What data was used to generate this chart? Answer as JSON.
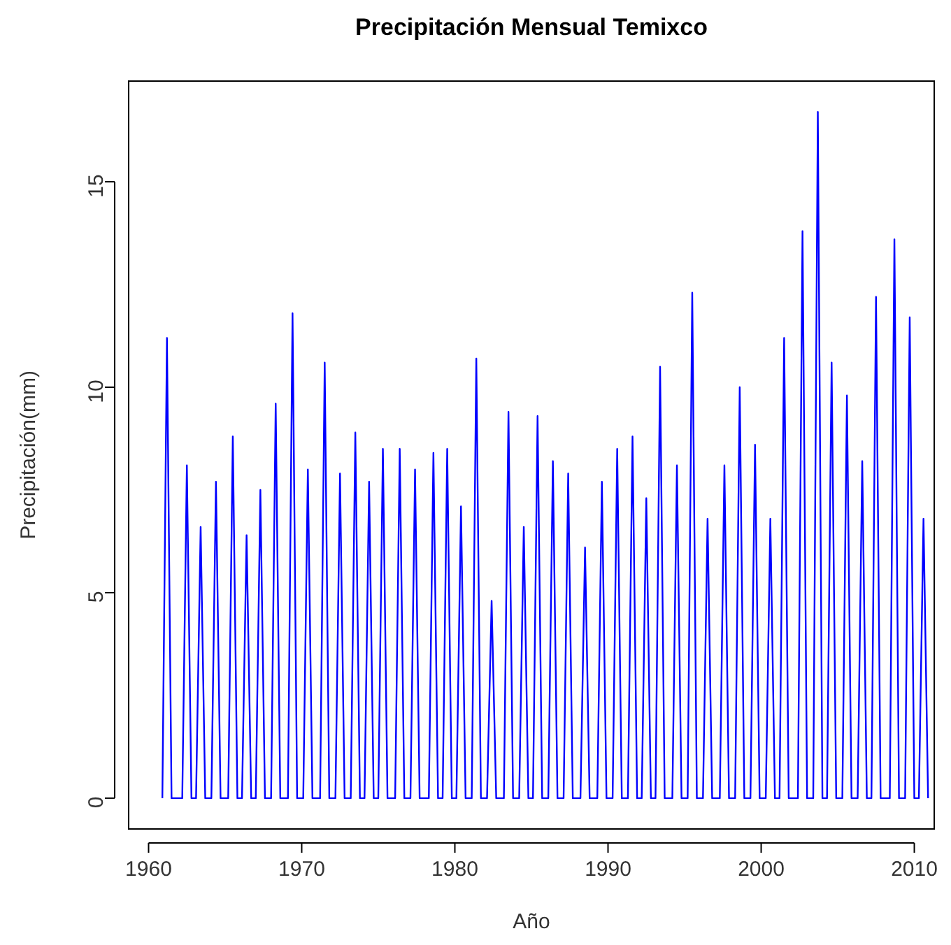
{
  "chart_data": {
    "type": "line",
    "title": "Precipitación Mensual Temixco",
    "xlabel": "Año",
    "ylabel": "Precipitación(mm)",
    "xlim": [
      1958.7,
      2011.3
    ],
    "ylim": [
      -0.75,
      17.45
    ],
    "xticks": [
      1960,
      1970,
      1980,
      1990,
      2000,
      2010
    ],
    "yticks": [
      0,
      5,
      10,
      15
    ],
    "grid": false,
    "marker": "none",
    "line_style": "solid",
    "series": [
      {
        "color": "#0000ff",
        "x": [
          1960.9,
          1961.2,
          1961.5,
          1962.2,
          1962.5,
          1962.8,
          1963.1,
          1963.4,
          1963.7,
          1964.1,
          1964.4,
          1964.7,
          1965.2,
          1965.5,
          1965.8,
          1966.1,
          1966.4,
          1966.7,
          1967.0,
          1967.3,
          1967.6,
          1968.0,
          1968.3,
          1968.6,
          1969.1,
          1969.4,
          1969.7,
          1970.1,
          1970.4,
          1970.7,
          1971.2,
          1971.5,
          1971.8,
          1972.2,
          1972.5,
          1972.8,
          1973.2,
          1973.5,
          1973.8,
          1974.1,
          1974.4,
          1974.7,
          1975.0,
          1975.3,
          1975.6,
          1976.1,
          1976.4,
          1976.7,
          1977.1,
          1977.4,
          1977.7,
          1978.3,
          1978.6,
          1978.9,
          1979.2,
          1979.5,
          1979.8,
          1980.1,
          1980.4,
          1980.7,
          1981.1,
          1981.4,
          1981.7,
          1982.1,
          1982.4,
          1982.7,
          1983.2,
          1983.5,
          1983.8,
          1984.2,
          1984.5,
          1984.8,
          1985.1,
          1985.4,
          1985.7,
          1986.1,
          1986.4,
          1986.7,
          1987.1,
          1987.4,
          1987.7,
          1988.2,
          1988.5,
          1988.8,
          1989.3,
          1989.6,
          1989.9,
          1990.3,
          1990.6,
          1990.9,
          1991.3,
          1991.6,
          1991.9,
          1992.2,
          1992.5,
          1992.8,
          1993.1,
          1993.4,
          1993.7,
          1994.2,
          1994.5,
          1994.8,
          1995.2,
          1995.5,
          1995.8,
          1996.2,
          1996.5,
          1996.8,
          1997.3,
          1997.6,
          1997.9,
          1998.3,
          1998.6,
          1998.9,
          1999.3,
          1999.6,
          1999.9,
          2000.3,
          2000.6,
          2000.9,
          2001.2,
          2001.5,
          2001.8,
          2002.4,
          2002.7,
          2003.0,
          2003.4,
          2003.7,
          2004.0,
          2004.3,
          2004.6,
          2004.9,
          2005.3,
          2005.6,
          2005.9,
          2006.3,
          2006.6,
          2006.9,
          2007.2,
          2007.5,
          2007.8,
          2008.4,
          2008.7,
          2009.0,
          2009.4,
          2009.7,
          2010.0,
          2010.3,
          2010.6,
          2010.9
        ],
        "values": [
          0,
          11.2,
          0,
          0,
          8.1,
          0,
          0,
          6.6,
          0,
          0,
          7.7,
          0,
          0,
          8.8,
          0,
          0,
          6.4,
          0,
          0,
          7.5,
          0,
          0,
          9.6,
          0,
          0,
          11.8,
          0,
          0,
          8.0,
          0,
          0,
          10.6,
          0,
          0,
          7.9,
          0,
          0,
          8.9,
          0,
          0,
          7.7,
          0,
          0,
          8.5,
          0,
          0,
          8.5,
          0,
          0,
          8.0,
          0,
          0,
          8.4,
          0,
          0,
          8.5,
          0,
          0,
          7.1,
          0,
          0,
          10.7,
          0,
          0,
          4.8,
          0,
          0,
          9.4,
          0,
          0,
          6.6,
          0,
          0,
          9.3,
          0,
          0,
          8.2,
          0,
          0,
          7.9,
          0,
          0,
          6.1,
          0,
          0,
          7.7,
          0,
          0,
          8.5,
          0,
          0,
          8.8,
          0,
          0,
          7.3,
          0,
          0,
          10.5,
          0,
          0,
          8.1,
          0,
          0,
          12.3,
          0,
          0,
          6.8,
          0,
          0,
          8.1,
          0,
          0,
          10.0,
          0,
          0,
          8.6,
          0,
          0,
          6.8,
          0,
          0,
          11.2,
          0,
          0,
          13.8,
          0,
          0,
          16.7,
          0,
          0,
          10.6,
          0,
          0,
          9.8,
          0,
          0,
          8.2,
          0,
          0,
          12.2,
          0,
          0,
          13.6,
          0,
          0,
          11.7,
          0,
          0,
          6.8,
          0
        ]
      }
    ]
  }
}
